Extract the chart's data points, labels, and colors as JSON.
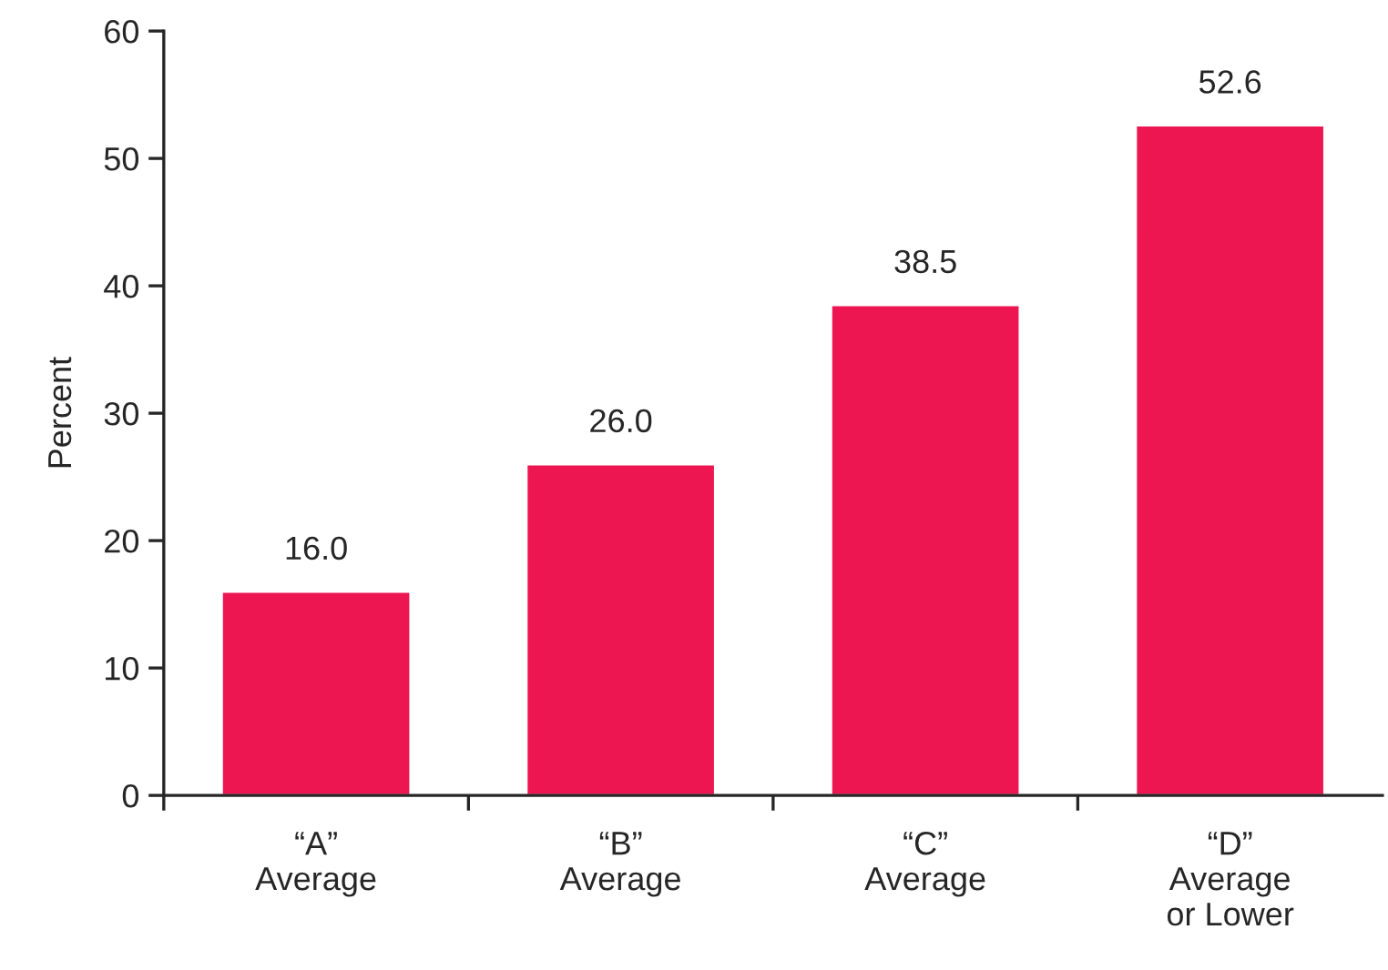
{
  "chart_data": {
    "type": "bar",
    "ylabel": "Percent",
    "categories": [
      "“A”\nAverage",
      "“B”\nAverage",
      "“C”\nAverage",
      "“D”\nAverage\nor Lower"
    ],
    "values": [
      16.0,
      26.0,
      38.5,
      52.6
    ],
    "value_labels": [
      "16.0",
      "26.0",
      "38.5",
      "52.6"
    ],
    "color": "#ed1651",
    "ylim": [
      0,
      60
    ],
    "yticks": [
      0,
      10,
      20,
      30,
      40,
      50,
      60
    ],
    "grid": false,
    "legend": false
  }
}
